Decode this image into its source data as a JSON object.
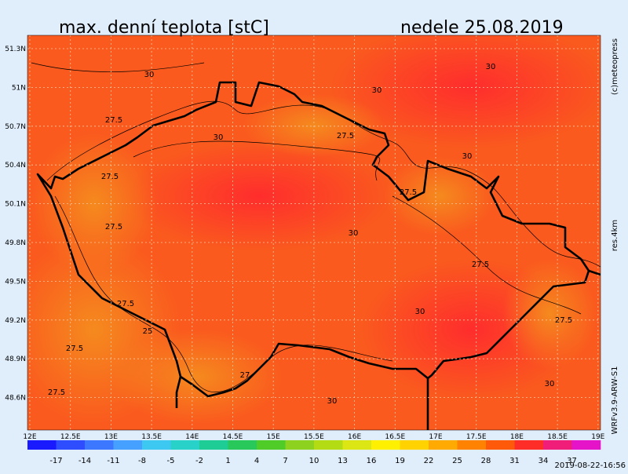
{
  "header": {
    "title": "max. denní teplota [stC]",
    "date": "nedele 25.08.2019"
  },
  "side_labels": {
    "copyright": "(c)meteopress",
    "resolution": "res.4km",
    "model": "WRFv3.9-ARW-S1"
  },
  "lat_labels": [
    "51.3N",
    "51N",
    "50.7N",
    "50.4N",
    "50.1N",
    "49.8N",
    "49.5N",
    "49.2N",
    "48.9N",
    "48.6N"
  ],
  "lon_labels": [
    "12E",
    "12.5E",
    "13E",
    "13.5E",
    "14E",
    "14.5E",
    "15E",
    "15.5E",
    "16E",
    "16.5E",
    "17E",
    "17.5E",
    "18E",
    "18.5E",
    "19E"
  ],
  "contour_labels": [
    "30",
    "27.5",
    "30",
    "27.5",
    "27.5",
    "30",
    "27.5",
    "30",
    "30",
    "27.5",
    "27.5",
    "30",
    "27.5",
    "25",
    "27.5",
    "27.5",
    "27",
    "30",
    "30",
    "27.5",
    "30"
  ],
  "colorbar": {
    "ticks": [
      -17,
      -14,
      -11,
      -8,
      -5,
      -2,
      1,
      4,
      7,
      10,
      13,
      16,
      19,
      22,
      25,
      28,
      31,
      34,
      37
    ],
    "colors": [
      "#1a1aff",
      "#2e4dff",
      "#3c78ff",
      "#46a0ff",
      "#3cc8f0",
      "#28d2c8",
      "#1ecc96",
      "#28c85a",
      "#50cc28",
      "#8cd21e",
      "#b4dc14",
      "#dce614",
      "#fff000",
      "#ffd200",
      "#ffaa00",
      "#ff8200",
      "#ff5a0a",
      "#ff2d28",
      "#f01e78",
      "#e614c8"
    ]
  },
  "timestamp": "2019-08-22-16:56"
}
